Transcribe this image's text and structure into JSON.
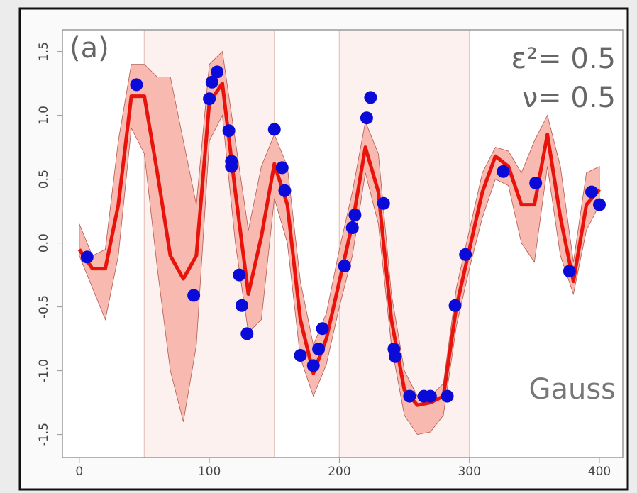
{
  "chart_data": {
    "type": "line",
    "annotations": [
      "(a)",
      "ε²= 0.5",
      "ν= 0.5",
      "Gauss"
    ],
    "x": [
      0,
      10,
      20,
      30,
      40,
      50,
      60,
      70,
      80,
      90,
      100,
      110,
      120,
      130,
      140,
      150,
      160,
      170,
      180,
      190,
      200,
      210,
      220,
      230,
      240,
      250,
      260,
      270,
      280,
      290,
      300,
      310,
      320,
      330,
      340,
      350,
      360,
      370,
      380,
      390,
      400
    ],
    "mean": [
      -0.05,
      -0.2,
      -0.2,
      0.3,
      1.15,
      1.15,
      0.55,
      -0.1,
      -0.28,
      -0.1,
      1.1,
      1.25,
      0.4,
      -0.4,
      0.05,
      0.62,
      0.3,
      -0.6,
      -1.02,
      -0.75,
      -0.3,
      0.15,
      0.75,
      0.4,
      -0.6,
      -1.15,
      -1.27,
      -1.25,
      -1.2,
      -0.5,
      -0.05,
      0.4,
      0.68,
      0.6,
      0.3,
      0.3,
      0.85,
      0.2,
      -0.3,
      0.3,
      0.42
    ],
    "upper": [
      0.15,
      -0.1,
      -0.05,
      0.8,
      1.4,
      1.4,
      1.3,
      1.3,
      0.8,
      0.3,
      1.4,
      1.5,
      0.8,
      0.1,
      0.6,
      0.85,
      0.6,
      -0.3,
      -0.8,
      -0.55,
      -0.05,
      0.4,
      0.95,
      0.7,
      -0.4,
      -1.0,
      -1.2,
      -1.2,
      -1.1,
      -0.35,
      0.1,
      0.55,
      0.75,
      0.72,
      0.55,
      0.8,
      1.0,
      0.6,
      -0.15,
      0.55,
      0.6
    ],
    "lower": [
      -0.1,
      -0.35,
      -0.6,
      -0.1,
      0.9,
      0.7,
      -0.2,
      -1.0,
      -1.4,
      -0.8,
      0.8,
      1.0,
      0.0,
      -0.7,
      -0.6,
      0.35,
      0.0,
      -0.9,
      -1.2,
      -0.95,
      -0.5,
      -0.1,
      0.55,
      0.15,
      -0.8,
      -1.35,
      -1.5,
      -1.48,
      -1.35,
      -0.65,
      -0.2,
      0.2,
      0.5,
      0.45,
      0.0,
      -0.15,
      0.6,
      -0.1,
      -0.4,
      0.1,
      0.3
    ],
    "points": {
      "x": [
        6,
        44,
        88,
        100,
        102,
        106,
        115,
        117,
        117,
        123,
        125,
        129,
        150,
        156,
        158,
        170,
        180,
        184,
        187,
        204,
        210,
        212,
        221,
        224,
        234,
        242,
        243,
        254,
        265,
        270,
        283,
        289,
        297,
        326,
        351,
        377,
        394,
        400
      ],
      "y": [
        -0.11,
        1.24,
        -0.41,
        1.13,
        1.26,
        1.34,
        0.88,
        0.64,
        0.6,
        -0.25,
        -0.49,
        -0.71,
        0.89,
        0.59,
        0.41,
        -0.88,
        -0.96,
        -0.83,
        -0.67,
        -0.18,
        0.12,
        0.22,
        0.98,
        1.14,
        0.31,
        -0.83,
        -0.89,
        -1.2,
        -1.2,
        -1.2,
        -1.2,
        -0.49,
        -0.09,
        0.56,
        0.47,
        -0.22,
        0.4,
        0.3
      ]
    },
    "shaded_regions": [
      [
        50,
        150
      ],
      [
        200,
        300
      ]
    ],
    "line_color": "#e8130b",
    "band_color": "#f7b9b0",
    "point_color": "#0a0ad9",
    "region_color": "#fdf1ef",
    "xlim": [
      -13,
      418
    ],
    "ylim": [
      -1.68,
      1.67
    ],
    "xticks": [
      0,
      100,
      200,
      300,
      400
    ],
    "yticks": [
      -1.5,
      {
        "value": -1.0,
        "label": "-1.0"
      },
      -0.5,
      {
        "value": 0.0,
        "label": "0.0"
      },
      0.5,
      {
        "value": 1.0,
        "label": "1.0"
      },
      1.5
    ]
  }
}
